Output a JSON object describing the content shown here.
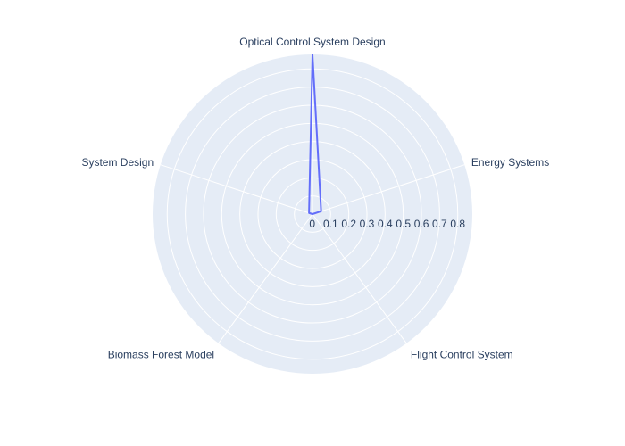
{
  "chart_data": {
    "type": "radar",
    "categories": [
      "Optical Control System Design",
      "Energy Systems",
      "Flight Control System",
      "Biomass Forest Model",
      "System Design"
    ],
    "series": [
      {
        "values": [
          0.88,
          0.05,
          0.0,
          0.0,
          0.02
        ],
        "color": "#636efa"
      }
    ],
    "radial_ticks": [
      "0",
      "0.1",
      "0.2",
      "0.3",
      "0.4",
      "0.5",
      "0.6",
      "0.7",
      "0.8"
    ],
    "radial_range": [
      0,
      0.88
    ],
    "grid": true,
    "background_color": "#e5ecf6",
    "grid_color": "#ffffff",
    "text_color": "#2a3f5f"
  }
}
